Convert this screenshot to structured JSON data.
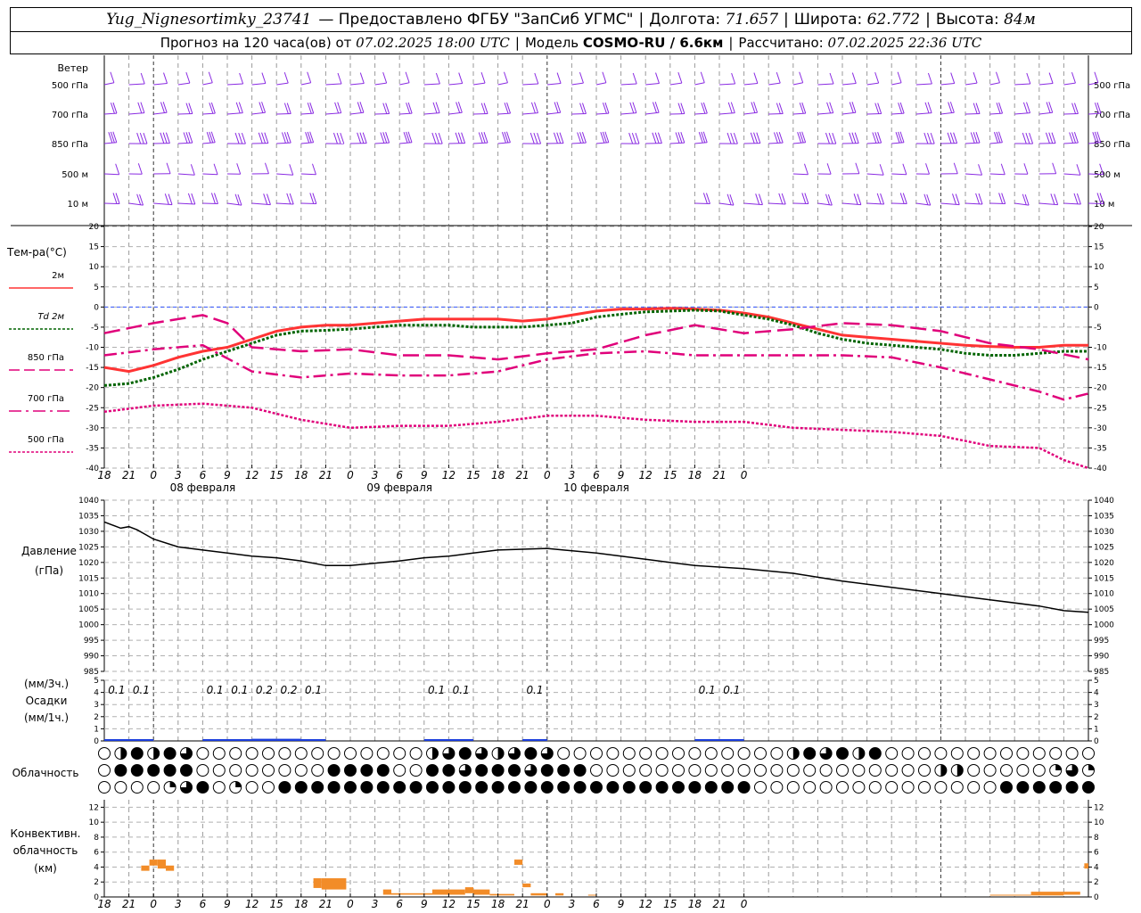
{
  "header": {
    "station": "Yug_Nignesortimky_23741",
    "provider": "— Предоставлено ФГБУ \"ЗапСиб УГМС\"",
    "lon_label": "Долгота:",
    "lon": "71.657",
    "lat_label": "Широта:",
    "lat": "62.772",
    "alt_label": "Высота:",
    "alt": "84м",
    "forecast_label": "Прогноз на 120 часа(ов) от",
    "forecast_from": "07.02.2025 18:00 UTC",
    "model_label": "Модель",
    "model": "COSMO-RU / 6.6км",
    "computed_label": "Рассчитано:",
    "computed": "07.02.2025 22:36 UTC"
  },
  "time_ticks": [
    "18",
    "21",
    "0",
    "3",
    "6",
    "9",
    "12",
    "15",
    "18",
    "21",
    "0",
    "3",
    "6",
    "9",
    "12",
    "15",
    "18",
    "21",
    "0",
    "3",
    "6",
    "9",
    "12",
    "15",
    "18",
    "21",
    "0"
  ],
  "day_labels": [
    {
      "label": "08 февраля",
      "tick": 8
    },
    {
      "label": "09 февраля",
      "tick": 16
    },
    {
      "label": "10 февраля",
      "tick": 24
    }
  ],
  "wind_panel": {
    "title": "Ветер",
    "levels": [
      "500 гПа",
      "700 гПа",
      "850 гПа",
      "500 м",
      "10 м"
    ],
    "color": "#8a2be2"
  },
  "temp_panel": {
    "title": "Тем-ра(°C)",
    "legend": [
      {
        "label": "2м",
        "color": "#ff3333",
        "dash": "solid"
      },
      {
        "label": "Td 2м",
        "color": "#006400",
        "dash": "dotted"
      },
      {
        "label": "850 гПа",
        "color": "#e0007a",
        "dash": "dashed"
      },
      {
        "label": "700 гПа",
        "color": "#e0007a",
        "dash": "dashdot"
      },
      {
        "label": "500 гПа",
        "color": "#e0007a",
        "dash": "dotted"
      }
    ],
    "y_ticks": [
      "20",
      "15",
      "10",
      "5",
      "0",
      "-5",
      "-10",
      "-15",
      "-20",
      "-25",
      "-30",
      "-35",
      "-40"
    ]
  },
  "pressure_panel": {
    "title": "Давление",
    "unit": "(гПа)",
    "y_ticks": [
      "1040",
      "1035",
      "1030",
      "1025",
      "1020",
      "1015",
      "1010",
      "1005",
      "1000",
      "995",
      "990",
      "985"
    ]
  },
  "precip_panel": {
    "unit_3h": "(мм/3ч.)",
    "title": "Осадки",
    "unit_1h": "(мм/1ч.)",
    "y_ticks": [
      "5",
      "4",
      "3",
      "2",
      "1",
      "0"
    ],
    "labels": [
      {
        "hour": 3,
        "text": "0.1"
      },
      {
        "hour": 6,
        "text": "0.1"
      },
      {
        "hour": 15,
        "text": "0.1"
      },
      {
        "hour": 18,
        "text": "0.1"
      },
      {
        "hour": 21,
        "text": "0.2"
      },
      {
        "hour": 24,
        "text": "0.2"
      },
      {
        "hour": 27,
        "text": "0.1"
      },
      {
        "hour": 42,
        "text": "0.1"
      },
      {
        "hour": 45,
        "text": "0.1"
      },
      {
        "hour": 54,
        "text": "0.1"
      },
      {
        "hour": 75,
        "text": "0.1"
      },
      {
        "hour": 78,
        "text": "0.1"
      }
    ]
  },
  "cloud_panel": {
    "title": "Облачность"
  },
  "conv_panel": {
    "title_line1": "Конвективн.",
    "title_line2": "облачность",
    "unit": "(км)",
    "y_ticks": [
      "12",
      "10",
      "8",
      "6",
      "4",
      "2",
      "0"
    ]
  },
  "chart_data": [
    {
      "type": "line",
      "title": "Тем-ра(°C)",
      "x_unit": "hours from 07.02.2025 18:00 UTC",
      "ylim": [
        -40,
        20
      ],
      "series": [
        {
          "name": "2м",
          "x": [
            0,
            3,
            6,
            9,
            12,
            15,
            18,
            21,
            24,
            27,
            30,
            33,
            36,
            39,
            42,
            45,
            48,
            51,
            54,
            57,
            60,
            63,
            66,
            69,
            72,
            75,
            78,
            81,
            84,
            87,
            90,
            93,
            96,
            99,
            102,
            105,
            108,
            111,
            114,
            117,
            120
          ],
          "values": [
            -15,
            -16,
            -14.5,
            -12.5,
            -11,
            -10,
            -8,
            -6,
            -5,
            -4.5,
            -4.5,
            -4,
            -3.5,
            -3,
            -3,
            -3,
            -3,
            -3.5,
            -3,
            -2,
            -1,
            -0.5,
            -0.5,
            -0.3,
            -0.5,
            -0.8,
            -1.5,
            -2.5,
            -4,
            -5.5,
            -7,
            -7.5,
            -8,
            -8.5,
            -9,
            -9.5,
            -9.8,
            -10,
            -10,
            -9.5,
            -9.5
          ]
        },
        {
          "name": "Td 2м",
          "x": [
            0,
            3,
            6,
            9,
            12,
            15,
            18,
            21,
            24,
            27,
            30,
            33,
            36,
            39,
            42,
            45,
            48,
            51,
            54,
            57,
            60,
            63,
            66,
            69,
            72,
            75,
            78,
            81,
            84,
            87,
            90,
            93,
            96,
            99,
            102,
            105,
            108,
            111,
            114,
            117,
            120
          ],
          "values": [
            -19.5,
            -19,
            -17.5,
            -15.5,
            -13,
            -11,
            -9,
            -7,
            -6,
            -5.8,
            -5.5,
            -5,
            -4.5,
            -4.5,
            -4.5,
            -5,
            -5,
            -5,
            -4.5,
            -4,
            -2.5,
            -1.8,
            -1.2,
            -1,
            -0.8,
            -1,
            -2,
            -3,
            -4.5,
            -6.5,
            -8,
            -9,
            -9.5,
            -10,
            -10.5,
            -11.5,
            -12,
            -12,
            -11.5,
            -11,
            -11
          ]
        },
        {
          "name": "850 гПа",
          "x": [
            0,
            6,
            12,
            15,
            18,
            24,
            30,
            36,
            42,
            48,
            54,
            60,
            66,
            72,
            78,
            84,
            90,
            96,
            102,
            108,
            114,
            120
          ],
          "values": [
            -6.5,
            -4,
            -2,
            -4,
            -10,
            -11,
            -10.5,
            -12,
            -12,
            -13,
            -11.5,
            -10.5,
            -7,
            -4.5,
            -6.5,
            -5.5,
            -4,
            -4.5,
            -6,
            -9,
            -10.5,
            -13
          ]
        },
        {
          "name": "700 гПа",
          "x": [
            0,
            6,
            12,
            18,
            24,
            30,
            36,
            42,
            48,
            54,
            60,
            66,
            72,
            78,
            84,
            90,
            96,
            102,
            108,
            114,
            117,
            120
          ],
          "values": [
            -12,
            -10.5,
            -9.5,
            -16,
            -17.5,
            -16.5,
            -17,
            -17,
            -16,
            -13,
            -11.5,
            -11,
            -12,
            -12,
            -12,
            -12,
            -12.5,
            -15,
            -18,
            -21,
            -23,
            -21.5
          ]
        },
        {
          "name": "500 гПа",
          "x": [
            0,
            6,
            12,
            18,
            24,
            30,
            36,
            42,
            48,
            54,
            60,
            66,
            72,
            78,
            84,
            90,
            96,
            102,
            108,
            114,
            117,
            120
          ],
          "values": [
            -26,
            -24.5,
            -24,
            -25,
            -28,
            -30,
            -29.5,
            -29.5,
            -28.5,
            -27,
            -27,
            -28,
            -28.5,
            -28.5,
            -30,
            -30.5,
            -31,
            -32,
            -34.5,
            -35,
            -38,
            -40
          ]
        }
      ]
    },
    {
      "type": "line",
      "title": "Давление",
      "x_unit": "hours from 07.02.2025 18:00 UTC",
      "ylim": [
        985,
        1040
      ],
      "series": [
        {
          "name": "",
          "x": [
            0,
            1,
            2,
            3,
            4,
            5,
            6,
            9,
            12,
            15,
            18,
            21,
            24,
            27,
            30,
            36,
            39,
            42,
            45,
            48,
            54,
            60,
            66,
            72,
            78,
            84,
            90,
            96,
            102,
            108,
            114,
            117,
            120
          ],
          "values": [
            1033,
            1032,
            1031,
            1031.5,
            1030.5,
            1029,
            1027.5,
            1025,
            1024,
            1023,
            1022,
            1021.5,
            1020.5,
            1019,
            1019,
            1020.5,
            1021.5,
            1022,
            1023,
            1024,
            1024.5,
            1023,
            1021,
            1019,
            1018,
            1016.5,
            1014,
            1012,
            1010,
            1008,
            1006,
            1004.5,
            1004
          ]
        }
      ]
    },
    {
      "type": "bar",
      "title": "Осадки",
      "x_unit": "hours from 07.02.2025 18:00 UTC",
      "ylim": [
        0,
        5
      ],
      "series": [
        {
          "name": "",
          "x": [
            3,
            6,
            15,
            18,
            21,
            24,
            27,
            42,
            45,
            54,
            75,
            78
          ],
          "values": [
            0.1,
            0.1,
            0.1,
            0.1,
            0.2,
            0.2,
            0.1,
            0.1,
            0.1,
            0.1,
            0.1,
            0.1
          ]
        }
      ]
    },
    {
      "type": "bar",
      "title": "Конвективн. облачность",
      "x_unit": "hours from 07.02.2025 18:00 UTC",
      "ylim": [
        0,
        13
      ],
      "bars": [
        {
          "x0": 4.5,
          "x1": 5.5,
          "low": 3.5,
          "high": 4.2
        },
        {
          "x0": 5.5,
          "x1": 6.5,
          "low": 4.2,
          "high": 5
        },
        {
          "x0": 6.5,
          "x1": 7.5,
          "low": 3.8,
          "high": 5
        },
        {
          "x0": 7.5,
          "x1": 8.5,
          "low": 3.5,
          "high": 4.2
        },
        {
          "x0": 25.5,
          "x1": 26.5,
          "low": 1.2,
          "high": 2.5
        },
        {
          "x0": 26.5,
          "x1": 29.5,
          "low": 1,
          "high": 2.5
        },
        {
          "x0": 34,
          "x1": 35,
          "low": 0.3,
          "high": 1
        },
        {
          "x0": 35,
          "x1": 40,
          "low": 0.3,
          "high": 0.5
        },
        {
          "x0": 40,
          "x1": 44,
          "low": 0.3,
          "high": 1
        },
        {
          "x0": 44,
          "x1": 45,
          "low": 0.5,
          "high": 1.3
        },
        {
          "x0": 45,
          "x1": 47,
          "low": 0.3,
          "high": 1
        },
        {
          "x0": 47,
          "x1": 50,
          "low": 0.2,
          "high": 0.4
        },
        {
          "x0": 50,
          "x1": 51,
          "low": 4.3,
          "high": 5
        },
        {
          "x0": 51,
          "x1": 52,
          "low": 1.3,
          "high": 1.8
        },
        {
          "x0": 52,
          "x1": 54,
          "low": 0.2,
          "high": 0.5
        },
        {
          "x0": 55,
          "x1": 56,
          "low": 0.2,
          "high": 0.5
        },
        {
          "x0": 59,
          "x1": 60,
          "low": 0.2,
          "high": 0.3
        },
        {
          "x0": 108,
          "x1": 113,
          "low": 0.2,
          "high": 0.3
        },
        {
          "x0": 113,
          "x1": 117,
          "low": 0.2,
          "high": 0.7
        },
        {
          "x0": 117,
          "x1": 119,
          "low": 0.3,
          "high": 0.7
        },
        {
          "x0": 119.5,
          "x1": 120,
          "low": 3.8,
          "high": 4.5
        }
      ]
    }
  ]
}
